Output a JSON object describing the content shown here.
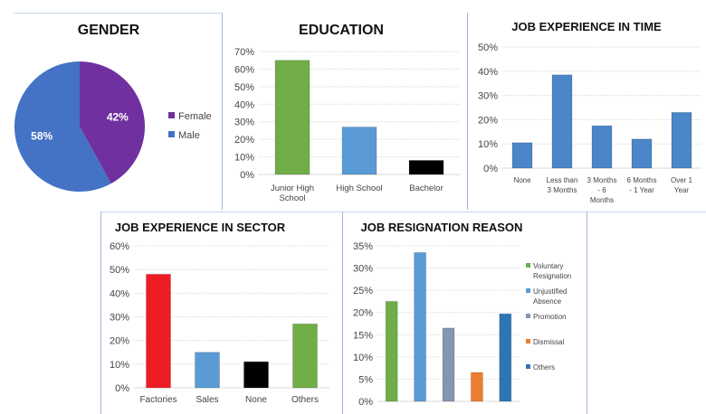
{
  "chart_data": [
    {
      "type": "pie",
      "title": "GENDER",
      "categories": [
        "Female",
        "Male"
      ],
      "values": [
        42,
        58
      ],
      "labels": [
        "42%",
        "58%"
      ],
      "colors": [
        "#7030a0",
        "#4472c4"
      ],
      "legend": "right"
    },
    {
      "type": "bar",
      "title": "EDUCATION",
      "categories": [
        "Junior High School",
        "High School",
        "Bachelor"
      ],
      "values": [
        65,
        27,
        8
      ],
      "colors": [
        "#70ad47",
        "#5b9bd5",
        "#000000"
      ],
      "ylim": [
        0,
        70
      ],
      "yticks": [
        "0%",
        "10%",
        "20%",
        "30%",
        "40%",
        "50%",
        "60%",
        "70%"
      ],
      "grid": true
    },
    {
      "type": "bar",
      "title": "JOB EXPERIENCE IN TIME",
      "categories": [
        "None",
        "Less than 3 Months",
        "3 Months - 6 Months",
        "6 Months - 1 Year",
        "Over 1 Year"
      ],
      "values": [
        10.5,
        38.5,
        17.5,
        12,
        23
      ],
      "colors": [
        "#4a86c8",
        "#4a86c8",
        "#4a86c8",
        "#4a86c8",
        "#4a86c8"
      ],
      "ylim": [
        0,
        50
      ],
      "yticks": [
        "0%",
        "10%",
        "20%",
        "30%",
        "40%",
        "50%"
      ],
      "grid": true
    },
    {
      "type": "bar",
      "title": "JOB EXPERIENCE IN SECTOR",
      "categories": [
        "Factories",
        "Sales",
        "None",
        "Others"
      ],
      "values": [
        48,
        15,
        11,
        27
      ],
      "colors": [
        "#ee1c25",
        "#5b9bd5",
        "#000000",
        "#70ad47"
      ],
      "ylim": [
        0,
        60
      ],
      "yticks": [
        "0%",
        "10%",
        "20%",
        "30%",
        "40%",
        "50%",
        "60%"
      ],
      "grid": true
    },
    {
      "type": "bar",
      "title": "JOB RESIGNATION REASON",
      "categories": [
        "Voluntary Resignation",
        "Unjustified Absence",
        "Promotion",
        "Dismissal",
        "Others"
      ],
      "values": [
        22.5,
        33.5,
        16.5,
        6.5,
        19.7
      ],
      "colors": [
        "#70ad47",
        "#5b9bd5",
        "#8497b0",
        "#ed7d31",
        "#2e75b6"
      ],
      "ylim": [
        0,
        35
      ],
      "yticks": [
        "0%",
        "5%",
        "10%",
        "15%",
        "20%",
        "25%",
        "30%",
        "35%"
      ],
      "grid": true,
      "legend": "right"
    }
  ]
}
